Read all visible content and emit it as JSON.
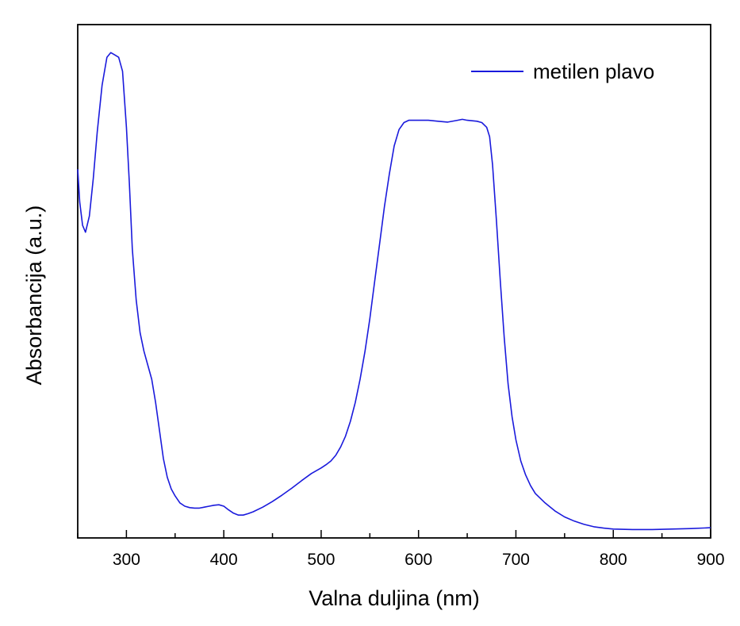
{
  "chart_data": {
    "type": "line",
    "title": "",
    "xlabel": "Valna duljina (nm)",
    "ylabel": "Absorbancija (a.u.)",
    "xlim": [
      250,
      900
    ],
    "ylim": [
      0,
      1.1
    ],
    "x_ticks": [
      300,
      400,
      500,
      600,
      700,
      800,
      900
    ],
    "x_minor_step": 50,
    "y_tick_labels": false,
    "grid": false,
    "legend": "top-right",
    "colors": {
      "series": "#1a1adc",
      "axis": "#000000"
    },
    "series": [
      {
        "name": "metilen plavo",
        "x": [
          250,
          252,
          255,
          258,
          262,
          266,
          270,
          275,
          280,
          284,
          288,
          292,
          296,
          300,
          303,
          306,
          310,
          314,
          318,
          322,
          326,
          330,
          334,
          338,
          342,
          346,
          350,
          355,
          360,
          365,
          370,
          375,
          380,
          385,
          390,
          395,
          400,
          405,
          410,
          415,
          420,
          425,
          430,
          440,
          450,
          460,
          470,
          480,
          490,
          500,
          505,
          510,
          515,
          520,
          525,
          530,
          535,
          540,
          545,
          550,
          555,
          560,
          565,
          570,
          575,
          580,
          585,
          590,
          595,
          600,
          610,
          620,
          630,
          640,
          645,
          650,
          660,
          665,
          670,
          673,
          676,
          680,
          684,
          688,
          692,
          696,
          700,
          705,
          710,
          715,
          720,
          730,
          740,
          750,
          760,
          770,
          780,
          790,
          800,
          820,
          840,
          860,
          880,
          900
        ],
        "values": [
          0.79,
          0.72,
          0.67,
          0.655,
          0.69,
          0.77,
          0.87,
          0.97,
          1.03,
          1.04,
          1.035,
          1.03,
          1.0,
          0.88,
          0.76,
          0.62,
          0.51,
          0.44,
          0.4,
          0.37,
          0.34,
          0.29,
          0.23,
          0.17,
          0.13,
          0.105,
          0.09,
          0.075,
          0.068,
          0.065,
          0.064,
          0.064,
          0.066,
          0.068,
          0.07,
          0.071,
          0.068,
          0.06,
          0.053,
          0.049,
          0.049,
          0.052,
          0.056,
          0.066,
          0.078,
          0.092,
          0.107,
          0.123,
          0.138,
          0.15,
          0.157,
          0.165,
          0.177,
          0.195,
          0.218,
          0.25,
          0.29,
          0.34,
          0.4,
          0.47,
          0.55,
          0.63,
          0.71,
          0.78,
          0.84,
          0.875,
          0.89,
          0.895,
          0.895,
          0.895,
          0.895,
          0.893,
          0.891,
          0.895,
          0.897,
          0.895,
          0.893,
          0.89,
          0.88,
          0.86,
          0.8,
          0.68,
          0.55,
          0.43,
          0.33,
          0.26,
          0.21,
          0.165,
          0.135,
          0.112,
          0.095,
          0.075,
          0.058,
          0.045,
          0.036,
          0.029,
          0.024,
          0.021,
          0.019,
          0.018,
          0.018,
          0.019,
          0.02,
          0.022
        ]
      }
    ]
  }
}
